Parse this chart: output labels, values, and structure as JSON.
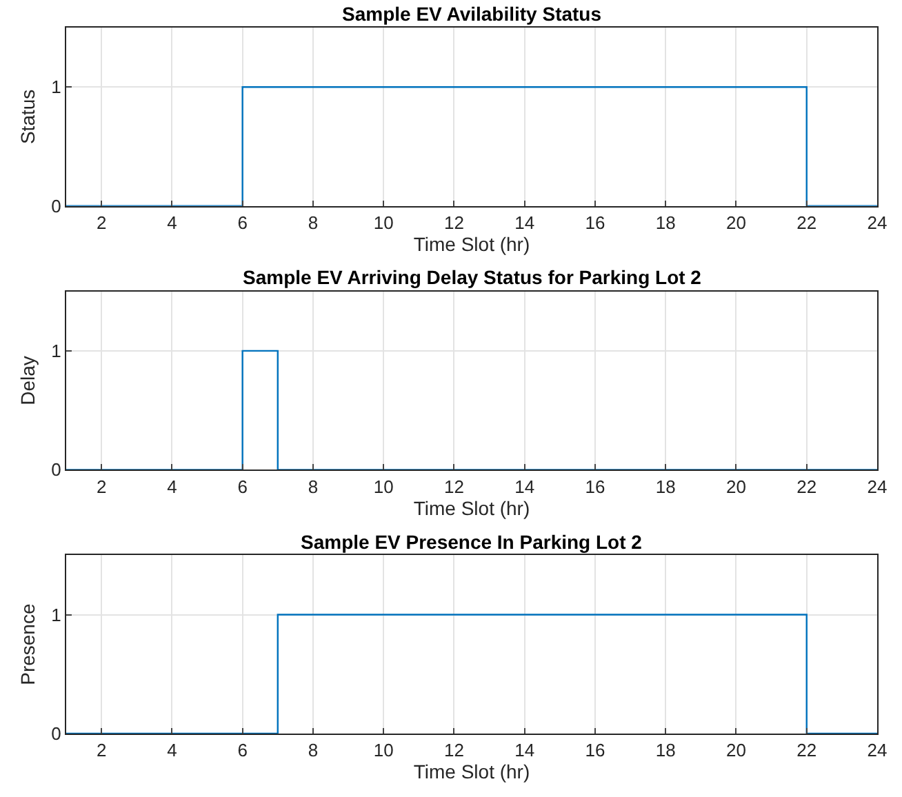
{
  "chart_data": [
    {
      "type": "step",
      "title": "Sample EV Avilability Status",
      "xlabel": "Time Slot (hr)",
      "ylabel": "Status",
      "x": [
        1,
        6,
        22,
        24
      ],
      "series": [
        {
          "color": "#0072bd",
          "values": [
            0,
            1,
            0,
            0
          ]
        }
      ],
      "xlim": [
        1,
        24
      ],
      "xticks": [
        2,
        4,
        6,
        8,
        10,
        12,
        14,
        16,
        18,
        20,
        22,
        24
      ],
      "ylim": [
        0,
        1.5
      ],
      "yticks": [
        0,
        1
      ],
      "grid": true
    },
    {
      "type": "step",
      "title": "Sample EV Arriving Delay Status for Parking Lot 2",
      "xlabel": "Time Slot (hr)",
      "ylabel": "Delay",
      "x": [
        1,
        6,
        7,
        24
      ],
      "series": [
        {
          "color": "#0072bd",
          "values": [
            0,
            1,
            0,
            0
          ]
        }
      ],
      "xlim": [
        1,
        24
      ],
      "xticks": [
        2,
        4,
        6,
        8,
        10,
        12,
        14,
        16,
        18,
        20,
        22,
        24
      ],
      "ylim": [
        0,
        1.5
      ],
      "yticks": [
        0,
        1
      ],
      "grid": true
    },
    {
      "type": "step",
      "title": "Sample EV Presence In Parking Lot 2",
      "xlabel": "Time Slot (hr)",
      "ylabel": "Presence",
      "x": [
        1,
        7,
        22,
        24
      ],
      "series": [
        {
          "color": "#0072bd",
          "values": [
            0,
            1,
            0,
            0
          ]
        }
      ],
      "xlim": [
        1,
        24
      ],
      "xticks": [
        2,
        4,
        6,
        8,
        10,
        12,
        14,
        16,
        18,
        20,
        22,
        24
      ],
      "ylim": [
        0,
        1.5
      ],
      "yticks": [
        0,
        1
      ],
      "grid": true
    }
  ]
}
